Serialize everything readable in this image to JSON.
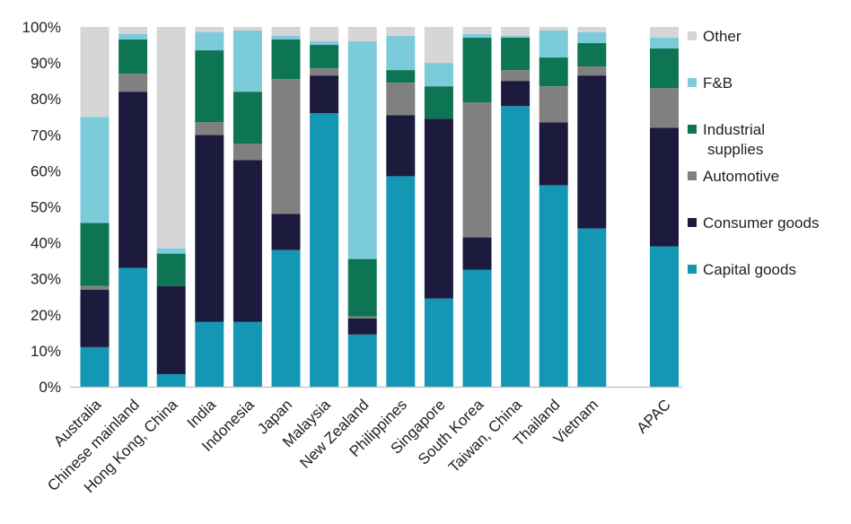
{
  "chart_data": {
    "type": "bar",
    "stacked": true,
    "title": "",
    "xlabel": "",
    "ylabel": "",
    "ylim": [
      0,
      100
    ],
    "yticks": [
      "0%",
      "10%",
      "20%",
      "30%",
      "40%",
      "50%",
      "60%",
      "70%",
      "80%",
      "90%",
      "100%"
    ],
    "grid": false,
    "legend_position": "right",
    "categories": [
      "Australia",
      "Chinese mainland",
      "Hong Kong, China",
      "India",
      "Indonesia",
      "Japan",
      "Malaysia",
      "New Zealand",
      "Philippines",
      "Singapore",
      "South Korea",
      "Taiwan, China",
      "Thailand",
      "Vietnam",
      "APAC"
    ],
    "series": [
      {
        "name": "Capital goods",
        "color": "#1497b5",
        "values": [
          11,
          33,
          3.5,
          18,
          18,
          38,
          76,
          14.5,
          58.5,
          24.5,
          32.5,
          78,
          56,
          44,
          39
        ]
      },
      {
        "name": "Consumer goods",
        "color": "#1c1a3d",
        "values": [
          16,
          49,
          24.5,
          52,
          45,
          10,
          10.5,
          4.5,
          17,
          50,
          9,
          7,
          17.5,
          42.5,
          33
        ]
      },
      {
        "name": "Automotive",
        "color": "#808080",
        "values": [
          1,
          5,
          0,
          3.5,
          4.5,
          37.5,
          2,
          0.5,
          9,
          0,
          37.5,
          3,
          10,
          2.5,
          11
        ]
      },
      {
        "name": "Industrial supplies",
        "color": "#0d7554",
        "values": [
          17.5,
          9.5,
          9,
          20,
          14.5,
          11,
          6.5,
          16,
          3.5,
          9,
          18,
          9,
          8,
          6.5,
          11
        ]
      },
      {
        "name": "F&B",
        "color": "#7ccbdb",
        "values": [
          29.5,
          1.5,
          1.5,
          5,
          17,
          1,
          1,
          60.5,
          9.5,
          6.5,
          1,
          0.5,
          7.5,
          3,
          3
        ]
      },
      {
        "name": "Other",
        "color": "#d6d6d6",
        "values": [
          25,
          2,
          61.5,
          1.5,
          1,
          2.5,
          4,
          4,
          2.5,
          10,
          2,
          2.5,
          1,
          1.5,
          3
        ]
      }
    ],
    "legend_labels": [
      {
        "series": "Other",
        "lines": [
          "Other"
        ]
      },
      {
        "series": "F&B",
        "lines": [
          "F&B"
        ]
      },
      {
        "series": "Industrial supplies",
        "lines": [
          "Industrial",
          "supplies"
        ]
      },
      {
        "series": "Automotive",
        "lines": [
          "Automotive"
        ]
      },
      {
        "series": "Consumer goods",
        "lines": [
          "Consumer goods"
        ]
      },
      {
        "series": "Capital goods",
        "lines": [
          "Capital goods"
        ]
      }
    ]
  }
}
